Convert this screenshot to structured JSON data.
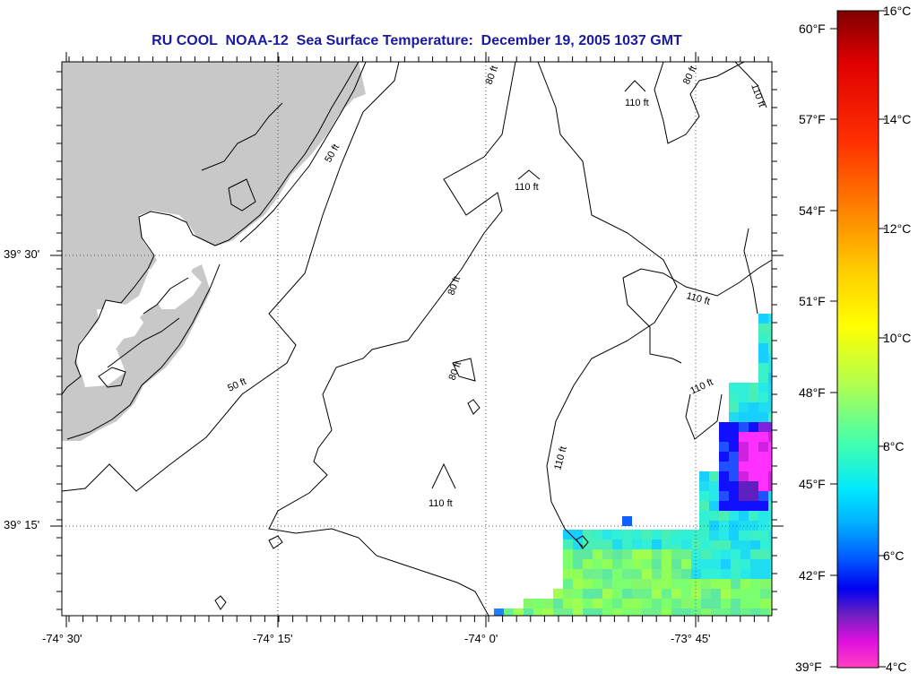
{
  "title": "RU COOL  NOAA-12  Sea Surface Temperature:  December 19, 2005 1037 GMT",
  "lat_labels": [
    "39° 30'",
    "39° 15'"
  ],
  "lon_labels": [
    "-74° 30'",
    "-74° 15'",
    "-74° 0'",
    "-73° 45'"
  ],
  "depth_labels": [
    "80 ft",
    "80 ft",
    "80 ft",
    "80 ft",
    "50 ft",
    "50 ft",
    "110 ft",
    "110 ft",
    "110 ft",
    "110 ft",
    "110 ft",
    "110 ft",
    "110 ft"
  ],
  "colorbar": {
    "fahrenheit": [
      "60°F",
      "57°F",
      "54°F",
      "51°F",
      "48°F",
      "45°F",
      "42°F",
      "39°F"
    ],
    "celsius": [
      "16°C",
      "14°C",
      "12°C",
      "10°C",
      "8°C",
      "6°C",
      "4°C"
    ]
  },
  "colors": {
    "land": "#c8c8c8",
    "title": "#1a1aa0"
  }
}
